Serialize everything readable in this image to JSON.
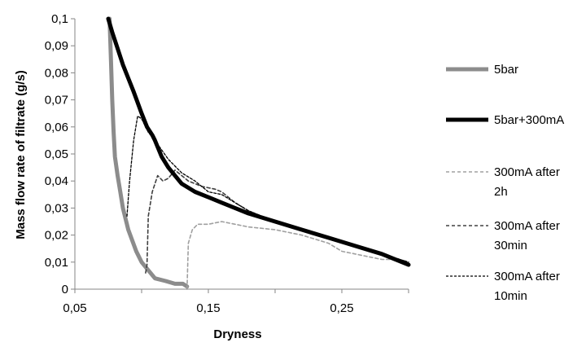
{
  "chart_data": {
    "type": "line",
    "title": "",
    "xlabel": "Dryness",
    "ylabel": "Mass flow rate of filtrate (g/s)",
    "xlim": [
      0.05,
      0.3
    ],
    "ylim": [
      0,
      0.1
    ],
    "x_ticks": [
      0.05,
      0.15,
      0.25
    ],
    "x_tick_labels": [
      "0,05",
      "0,15",
      "0,25"
    ],
    "y_ticks": [
      0,
      0.01,
      0.02,
      0.03,
      0.04,
      0.05,
      0.06,
      0.07,
      0.08,
      0.09,
      0.1
    ],
    "y_tick_labels": [
      "0",
      "0,01",
      "0,02",
      "0,03",
      "0,04",
      "0,05",
      "0,06",
      "0,07",
      "0,08",
      "0,09",
      "0,1"
    ],
    "grid": false,
    "legend_position": "right",
    "series": [
      {
        "name": "5bar",
        "color": "#8c8c8c",
        "style": "solid-thick",
        "legend_lines": [
          "5bar"
        ],
        "points": [
          [
            0.076,
            0.1
          ],
          [
            0.077,
            0.085
          ],
          [
            0.078,
            0.07
          ],
          [
            0.079,
            0.058
          ],
          [
            0.08,
            0.049
          ],
          [
            0.082,
            0.042
          ],
          [
            0.084,
            0.036
          ],
          [
            0.086,
            0.03
          ],
          [
            0.088,
            0.026
          ],
          [
            0.09,
            0.022
          ],
          [
            0.093,
            0.018
          ],
          [
            0.096,
            0.014
          ],
          [
            0.1,
            0.01
          ],
          [
            0.105,
            0.007
          ],
          [
            0.11,
            0.004
          ],
          [
            0.118,
            0.003
          ],
          [
            0.125,
            0.002
          ],
          [
            0.131,
            0.002
          ],
          [
            0.134,
            0.001
          ]
        ]
      },
      {
        "name": "5bar+300mA",
        "color": "#000000",
        "style": "solid-thick",
        "legend_lines": [
          "5bar+300mA"
        ],
        "points": [
          [
            0.075,
            0.1
          ],
          [
            0.078,
            0.095
          ],
          [
            0.082,
            0.089
          ],
          [
            0.086,
            0.083
          ],
          [
            0.09,
            0.078
          ],
          [
            0.094,
            0.073
          ],
          [
            0.097,
            0.069
          ],
          [
            0.1,
            0.065
          ],
          [
            0.104,
            0.06
          ],
          [
            0.108,
            0.057
          ],
          [
            0.11,
            0.055
          ],
          [
            0.115,
            0.049
          ],
          [
            0.12,
            0.045
          ],
          [
            0.125,
            0.042
          ],
          [
            0.13,
            0.039
          ],
          [
            0.14,
            0.036
          ],
          [
            0.15,
            0.034
          ],
          [
            0.16,
            0.032
          ],
          [
            0.17,
            0.03
          ],
          [
            0.18,
            0.028
          ],
          [
            0.2,
            0.025
          ],
          [
            0.22,
            0.022
          ],
          [
            0.24,
            0.019
          ],
          [
            0.26,
            0.016
          ],
          [
            0.28,
            0.013
          ],
          [
            0.3,
            0.009
          ]
        ]
      },
      {
        "name": "300mA after 2h",
        "color": "#a0a0a0",
        "style": "dashed",
        "legend_lines": [
          "300mA after",
          "2h"
        ],
        "points": [
          [
            0.134,
            0.0
          ],
          [
            0.135,
            0.017
          ],
          [
            0.138,
            0.022
          ],
          [
            0.142,
            0.024
          ],
          [
            0.15,
            0.024
          ],
          [
            0.16,
            0.025
          ],
          [
            0.17,
            0.024
          ],
          [
            0.18,
            0.023
          ],
          [
            0.2,
            0.022
          ],
          [
            0.22,
            0.02
          ],
          [
            0.24,
            0.017
          ],
          [
            0.25,
            0.014
          ],
          [
            0.26,
            0.013
          ],
          [
            0.27,
            0.012
          ],
          [
            0.28,
            0.011
          ],
          [
            0.29,
            0.011
          ],
          [
            0.3,
            0.01
          ]
        ]
      },
      {
        "name": "300mA after 30min",
        "color": "#404040",
        "style": "dashed",
        "legend_lines": [
          "300mA after",
          "30min"
        ],
        "points": [
          [
            0.103,
            0.006
          ],
          [
            0.104,
            0.009
          ],
          [
            0.105,
            0.027
          ],
          [
            0.108,
            0.036
          ],
          [
            0.112,
            0.042
          ],
          [
            0.116,
            0.04
          ],
          [
            0.12,
            0.041
          ],
          [
            0.125,
            0.044
          ],
          [
            0.135,
            0.04
          ],
          [
            0.145,
            0.038
          ],
          [
            0.155,
            0.037
          ],
          [
            0.16,
            0.036
          ],
          [
            0.17,
            0.032
          ],
          [
            0.18,
            0.029
          ],
          [
            0.2,
            0.025
          ],
          [
            0.22,
            0.022
          ],
          [
            0.24,
            0.019
          ],
          [
            0.26,
            0.016
          ],
          [
            0.28,
            0.013
          ],
          [
            0.3,
            0.01
          ]
        ]
      },
      {
        "name": "300mA after 10min",
        "color": "#000000",
        "style": "dashed-fine",
        "legend_lines": [
          "300mA after",
          "10min"
        ],
        "points": [
          [
            0.089,
            0.027
          ],
          [
            0.091,
            0.04
          ],
          [
            0.094,
            0.055
          ],
          [
            0.097,
            0.064
          ],
          [
            0.1,
            0.063
          ],
          [
            0.105,
            0.058
          ],
          [
            0.11,
            0.055
          ],
          [
            0.12,
            0.048
          ],
          [
            0.13,
            0.043
          ],
          [
            0.14,
            0.04
          ],
          [
            0.15,
            0.036
          ],
          [
            0.16,
            0.035
          ],
          [
            0.17,
            0.032
          ],
          [
            0.18,
            0.029
          ],
          [
            0.2,
            0.025
          ],
          [
            0.22,
            0.022
          ],
          [
            0.24,
            0.019
          ],
          [
            0.26,
            0.016
          ],
          [
            0.28,
            0.013
          ],
          [
            0.3,
            0.01
          ]
        ]
      }
    ]
  }
}
